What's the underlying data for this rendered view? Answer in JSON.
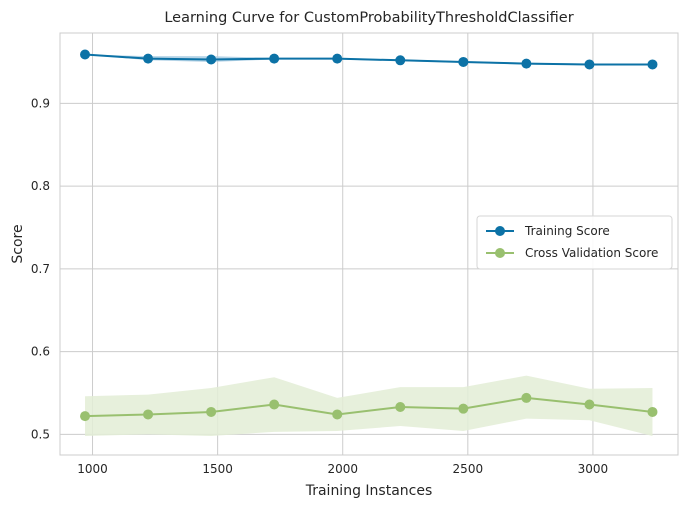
{
  "chart_data": {
    "type": "line",
    "title": "Learning Curve for CustomProbabilityThresholdClassifier",
    "xlabel": "Training Instances",
    "ylabel": "Score",
    "xlim": [
      870,
      3340
    ],
    "ylim": [
      0.475,
      0.985
    ],
    "xticks": [
      1000,
      1500,
      2000,
      2500,
      3000
    ],
    "xtick_labels": [
      "1000",
      "1500",
      "2000",
      "2500",
      "3000"
    ],
    "yticks": [
      0.5,
      0.6,
      0.7,
      0.8,
      0.9
    ],
    "ytick_labels": [
      "0.5",
      "0.6",
      "0.7",
      "0.8",
      "0.9"
    ],
    "grid": true,
    "legend_position": "center-right",
    "x": [
      970,
      1222,
      1474,
      1726,
      1978,
      2230,
      2482,
      2734,
      2986,
      3238
    ],
    "series": [
      {
        "name": "Training Score",
        "color": "#0c72a6",
        "band_color": "#a9cce3",
        "values": [
          0.959,
          0.954,
          0.953,
          0.954,
          0.954,
          0.952,
          0.95,
          0.948,
          0.947,
          0.947
        ],
        "band_low": [
          0.959,
          0.952,
          0.95,
          0.953,
          0.953,
          0.951,
          0.949,
          0.947,
          0.946,
          0.946
        ],
        "band_high": [
          0.959,
          0.957,
          0.957,
          0.955,
          0.955,
          0.953,
          0.951,
          0.949,
          0.948,
          0.948
        ]
      },
      {
        "name": "Cross Validation Score",
        "color": "#99c06f",
        "band_color": "#e3edd6",
        "values": [
          0.522,
          0.524,
          0.527,
          0.536,
          0.524,
          0.533,
          0.531,
          0.544,
          0.536,
          0.527
        ],
        "band_low": [
          0.498,
          0.5,
          0.498,
          0.503,
          0.504,
          0.51,
          0.504,
          0.519,
          0.517,
          0.498
        ],
        "band_high": [
          0.546,
          0.548,
          0.556,
          0.569,
          0.544,
          0.557,
          0.557,
          0.571,
          0.555,
          0.556
        ]
      }
    ]
  }
}
